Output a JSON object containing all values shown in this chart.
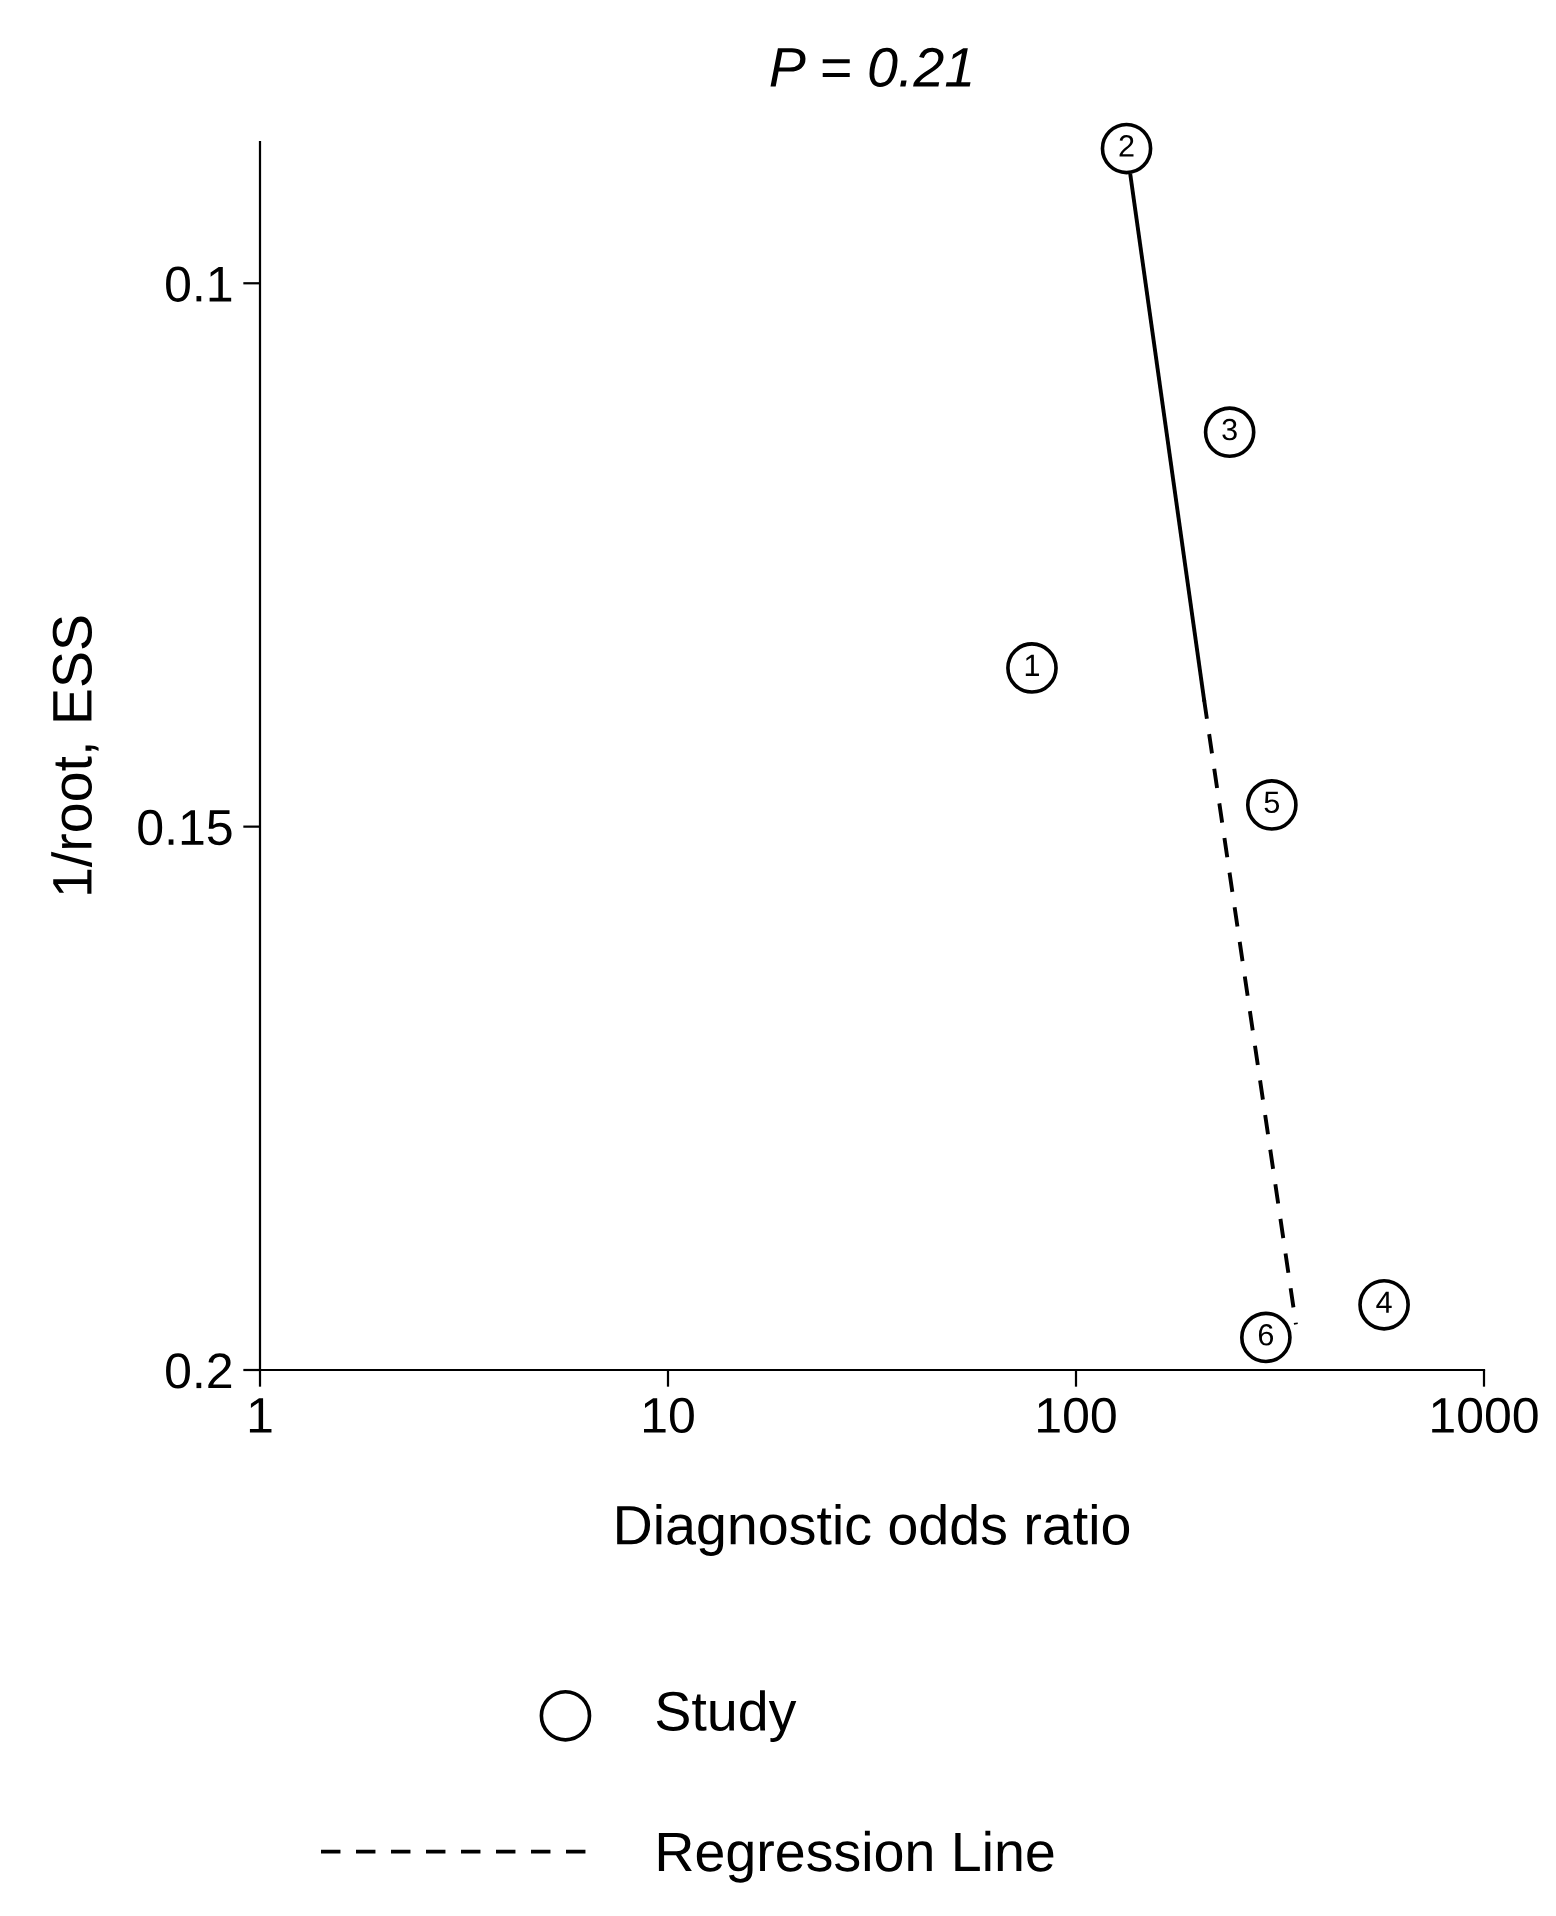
{
  "chart_data": {
    "type": "scatter",
    "title": "P = 0.21",
    "xlabel": "Diagnostic odds ratio",
    "ylabel": "1/root, ESS",
    "log": "x",
    "xlim": [
      1,
      1000
    ],
    "xticks": [
      1,
      10,
      100,
      1000
    ],
    "ylim": [
      0.2,
      0.087
    ],
    "yticks": [
      0.1,
      0.15,
      0.2
    ],
    "grid": false,
    "legend": "bottom",
    "series": [
      {
        "name": "Study",
        "marker": "circle",
        "color": "#000000",
        "x": [
          78,
          133,
          238,
          569,
          302,
          292
        ],
        "values": [
          0.1354,
          0.0876,
          0.1137,
          0.194,
          0.148,
          0.197
        ]
      },
      {
        "type": "line",
        "line_style": "solid",
        "color": "#000000",
        "x": [
          136,
          206
        ],
        "values": [
          0.0901,
          0.1383
        ]
      },
      {
        "name": "Regression Line",
        "type": "line",
        "line_style": "dashed",
        "color": "#000000",
        "x": [
          206,
          346
        ],
        "values": [
          0.1383,
          0.1958
        ]
      }
    ],
    "annotations": [
      {
        "text": "1",
        "x": 78,
        "y": 0.1354
      },
      {
        "text": "2",
        "x": 133,
        "y": 0.0876
      },
      {
        "text": "3",
        "x": 238,
        "y": 0.1137
      },
      {
        "text": "4",
        "x": 569,
        "y": 0.194
      },
      {
        "text": "5",
        "x": 302,
        "y": 0.148
      },
      {
        "text": "6",
        "x": 292,
        "y": 0.197
      }
    ]
  }
}
